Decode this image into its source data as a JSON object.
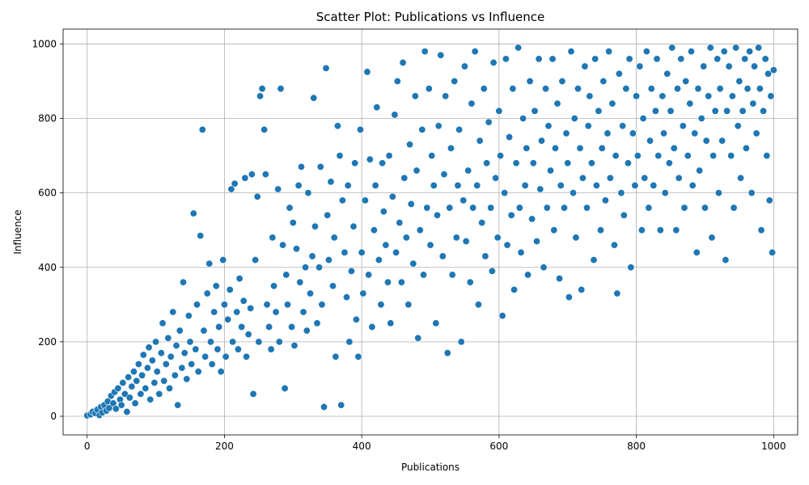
{
  "chart_data": {
    "type": "scatter",
    "title": "Scatter Plot: Publications vs Influence",
    "xlabel": "Publications",
    "ylabel": "Influence",
    "xlim": [
      -35,
      1035
    ],
    "ylim": [
      -50,
      1040
    ],
    "xticks": [
      0,
      200,
      400,
      600,
      800,
      1000
    ],
    "yticks": [
      0,
      200,
      400,
      600,
      800,
      1000
    ],
    "grid": true,
    "color": "#1f77b4",
    "points": [
      [
        0,
        2
      ],
      [
        5,
        5
      ],
      [
        8,
        12
      ],
      [
        12,
        8
      ],
      [
        15,
        18
      ],
      [
        18,
        3
      ],
      [
        20,
        25
      ],
      [
        22,
        10
      ],
      [
        25,
        30
      ],
      [
        28,
        15
      ],
      [
        30,
        40
      ],
      [
        32,
        22
      ],
      [
        35,
        55
      ],
      [
        38,
        35
      ],
      [
        40,
        65
      ],
      [
        42,
        20
      ],
      [
        45,
        75
      ],
      [
        48,
        45
      ],
      [
        50,
        30
      ],
      [
        52,
        90
      ],
      [
        55,
        60
      ],
      [
        58,
        12
      ],
      [
        60,
        105
      ],
      [
        62,
        50
      ],
      [
        65,
        80
      ],
      [
        68,
        120
      ],
      [
        70,
        35
      ],
      [
        72,
        95
      ],
      [
        75,
        140
      ],
      [
        78,
        60
      ],
      [
        80,
        110
      ],
      [
        82,
        165
      ],
      [
        85,
        75
      ],
      [
        88,
        130
      ],
      [
        90,
        185
      ],
      [
        92,
        45
      ],
      [
        95,
        150
      ],
      [
        98,
        90
      ],
      [
        100,
        200
      ],
      [
        102,
        120
      ],
      [
        105,
        60
      ],
      [
        108,
        170
      ],
      [
        110,
        250
      ],
      [
        112,
        95
      ],
      [
        115,
        140
      ],
      [
        118,
        210
      ],
      [
        120,
        75
      ],
      [
        122,
        160
      ],
      [
        125,
        280
      ],
      [
        128,
        110
      ],
      [
        130,
        190
      ],
      [
        132,
        30
      ],
      [
        135,
        230
      ],
      [
        138,
        130
      ],
      [
        140,
        360
      ],
      [
        142,
        170
      ],
      [
        145,
        100
      ],
      [
        148,
        270
      ],
      [
        150,
        200
      ],
      [
        152,
        140
      ],
      [
        155,
        545
      ],
      [
        158,
        180
      ],
      [
        160,
        300
      ],
      [
        162,
        120
      ],
      [
        165,
        485
      ],
      [
        168,
        770
      ],
      [
        170,
        230
      ],
      [
        172,
        160
      ],
      [
        175,
        330
      ],
      [
        178,
        410
      ],
      [
        180,
        200
      ],
      [
        182,
        140
      ],
      [
        185,
        280
      ],
      [
        188,
        350
      ],
      [
        190,
        180
      ],
      [
        192,
        240
      ],
      [
        195,
        120
      ],
      [
        198,
        420
      ],
      [
        200,
        300
      ],
      [
        202,
        160
      ],
      [
        205,
        260
      ],
      [
        208,
        340
      ],
      [
        210,
        610
      ],
      [
        212,
        200
      ],
      [
        215,
        625
      ],
      [
        218,
        280
      ],
      [
        220,
        180
      ],
      [
        222,
        370
      ],
      [
        225,
        240
      ],
      [
        228,
        310
      ],
      [
        230,
        640
      ],
      [
        232,
        160
      ],
      [
        235,
        220
      ],
      [
        238,
        290
      ],
      [
        240,
        650
      ],
      [
        242,
        60
      ],
      [
        245,
        420
      ],
      [
        248,
        590
      ],
      [
        250,
        200
      ],
      [
        252,
        860
      ],
      [
        255,
        880
      ],
      [
        258,
        770
      ],
      [
        260,
        650
      ],
      [
        262,
        300
      ],
      [
        265,
        240
      ],
      [
        268,
        180
      ],
      [
        270,
        480
      ],
      [
        272,
        350
      ],
      [
        275,
        280
      ],
      [
        278,
        610
      ],
      [
        280,
        200
      ],
      [
        282,
        880
      ],
      [
        285,
        460
      ],
      [
        288,
        75
      ],
      [
        290,
        380
      ],
      [
        292,
        300
      ],
      [
        295,
        560
      ],
      [
        298,
        240
      ],
      [
        300,
        520
      ],
      [
        302,
        190
      ],
      [
        305,
        450
      ],
      [
        308,
        620
      ],
      [
        310,
        360
      ],
      [
        312,
        670
      ],
      [
        315,
        280
      ],
      [
        318,
        400
      ],
      [
        320,
        230
      ],
      [
        322,
        600
      ],
      [
        325,
        330
      ],
      [
        328,
        430
      ],
      [
        330,
        855
      ],
      [
        332,
        510
      ],
      [
        335,
        250
      ],
      [
        338,
        400
      ],
      [
        340,
        670
      ],
      [
        342,
        300
      ],
      [
        345,
        25
      ],
      [
        348,
        935
      ],
      [
        350,
        540
      ],
      [
        352,
        420
      ],
      [
        355,
        630
      ],
      [
        358,
        350
      ],
      [
        360,
        480
      ],
      [
        362,
        160
      ],
      [
        365,
        780
      ],
      [
        368,
        700
      ],
      [
        370,
        30
      ],
      [
        372,
        580
      ],
      [
        375,
        440
      ],
      [
        378,
        320
      ],
      [
        380,
        620
      ],
      [
        382,
        200
      ],
      [
        385,
        390
      ],
      [
        388,
        510
      ],
      [
        390,
        680
      ],
      [
        392,
        260
      ],
      [
        395,
        160
      ],
      [
        398,
        770
      ],
      [
        400,
        440
      ],
      [
        402,
        330
      ],
      [
        405,
        580
      ],
      [
        408,
        925
      ],
      [
        410,
        380
      ],
      [
        412,
        690
      ],
      [
        415,
        240
      ],
      [
        418,
        500
      ],
      [
        420,
        620
      ],
      [
        422,
        830
      ],
      [
        425,
        420
      ],
      [
        428,
        300
      ],
      [
        430,
        680
      ],
      [
        432,
        550
      ],
      [
        435,
        460
      ],
      [
        438,
        360
      ],
      [
        440,
        700
      ],
      [
        442,
        250
      ],
      [
        445,
        590
      ],
      [
        448,
        810
      ],
      [
        450,
        440
      ],
      [
        452,
        900
      ],
      [
        455,
        520
      ],
      [
        458,
        360
      ],
      [
        460,
        950
      ],
      [
        462,
        640
      ],
      [
        465,
        480
      ],
      [
        468,
        300
      ],
      [
        470,
        730
      ],
      [
        472,
        570
      ],
      [
        475,
        410
      ],
      [
        478,
        860
      ],
      [
        480,
        660
      ],
      [
        482,
        210
      ],
      [
        485,
        500
      ],
      [
        488,
        770
      ],
      [
        490,
        380
      ],
      [
        492,
        980
      ],
      [
        495,
        560
      ],
      [
        498,
        880
      ],
      [
        500,
        460
      ],
      [
        502,
        700
      ],
      [
        505,
        620
      ],
      [
        508,
        250
      ],
      [
        510,
        540
      ],
      [
        512,
        780
      ],
      [
        515,
        970
      ],
      [
        518,
        430
      ],
      [
        520,
        650
      ],
      [
        522,
        860
      ],
      [
        525,
        170
      ],
      [
        528,
        560
      ],
      [
        530,
        720
      ],
      [
        532,
        380
      ],
      [
        535,
        900
      ],
      [
        538,
        480
      ],
      [
        540,
        620
      ],
      [
        542,
        770
      ],
      [
        545,
        200
      ],
      [
        548,
        580
      ],
      [
        550,
        940
      ],
      [
        552,
        470
      ],
      [
        555,
        660
      ],
      [
        558,
        360
      ],
      [
        560,
        840
      ],
      [
        562,
        560
      ],
      [
        565,
        980
      ],
      [
        568,
        620
      ],
      [
        570,
        300
      ],
      [
        572,
        740
      ],
      [
        575,
        520
      ],
      [
        578,
        880
      ],
      [
        580,
        430
      ],
      [
        582,
        680
      ],
      [
        585,
        790
      ],
      [
        588,
        560
      ],
      [
        590,
        390
      ],
      [
        592,
        950
      ],
      [
        595,
        640
      ],
      [
        598,
        480
      ],
      [
        600,
        820
      ],
      [
        602,
        700
      ],
      [
        605,
        270
      ],
      [
        608,
        600
      ],
      [
        610,
        960
      ],
      [
        612,
        460
      ],
      [
        615,
        750
      ],
      [
        618,
        540
      ],
      [
        620,
        880
      ],
      [
        622,
        340
      ],
      [
        625,
        680
      ],
      [
        628,
        990
      ],
      [
        630,
        560
      ],
      [
        632,
        440
      ],
      [
        635,
        800
      ],
      [
        638,
        620
      ],
      [
        640,
        720
      ],
      [
        642,
        380
      ],
      [
        645,
        900
      ],
      [
        648,
        530
      ],
      [
        650,
        680
      ],
      [
        652,
        820
      ],
      [
        655,
        470
      ],
      [
        658,
        960
      ],
      [
        660,
        610
      ],
      [
        662,
        740
      ],
      [
        665,
        400
      ],
      [
        668,
        880
      ],
      [
        670,
        560
      ],
      [
        672,
        780
      ],
      [
        675,
        660
      ],
      [
        678,
        960
      ],
      [
        680,
        500
      ],
      [
        682,
        720
      ],
      [
        685,
        840
      ],
      [
        688,
        370
      ],
      [
        690,
        620
      ],
      [
        692,
        900
      ],
      [
        695,
        560
      ],
      [
        698,
        760
      ],
      [
        700,
        680
      ],
      [
        702,
        320
      ],
      [
        705,
        980
      ],
      [
        708,
        600
      ],
      [
        710,
        800
      ],
      [
        712,
        480
      ],
      [
        715,
        880
      ],
      [
        718,
        720
      ],
      [
        720,
        340
      ],
      [
        722,
        640
      ],
      [
        725,
        940
      ],
      [
        728,
        560
      ],
      [
        730,
        780
      ],
      [
        732,
        860
      ],
      [
        735,
        680
      ],
      [
        738,
        420
      ],
      [
        740,
        960
      ],
      [
        742,
        620
      ],
      [
        745,
        820
      ],
      [
        748,
        500
      ],
      [
        750,
        720
      ],
      [
        752,
        900
      ],
      [
        755,
        580
      ],
      [
        758,
        760
      ],
      [
        760,
        980
      ],
      [
        762,
        640
      ],
      [
        765,
        840
      ],
      [
        768,
        460
      ],
      [
        770,
        700
      ],
      [
        772,
        330
      ],
      [
        775,
        920
      ],
      [
        778,
        600
      ],
      [
        780,
        780
      ],
      [
        782,
        540
      ],
      [
        785,
        880
      ],
      [
        788,
        680
      ],
      [
        790,
        960
      ],
      [
        792,
        400
      ],
      [
        795,
        760
      ],
      [
        798,
        620
      ],
      [
        800,
        860
      ],
      [
        802,
        700
      ],
      [
        805,
        940
      ],
      [
        808,
        500
      ],
      [
        810,
        800
      ],
      [
        812,
        640
      ],
      [
        815,
        980
      ],
      [
        818,
        560
      ],
      [
        820,
        740
      ],
      [
        822,
        880
      ],
      [
        825,
        620
      ],
      [
        828,
        820
      ],
      [
        830,
        960
      ],
      [
        832,
        700
      ],
      [
        835,
        500
      ],
      [
        838,
        860
      ],
      [
        840,
        760
      ],
      [
        842,
        600
      ],
      [
        845,
        920
      ],
      [
        848,
        680
      ],
      [
        850,
        820
      ],
      [
        852,
        990
      ],
      [
        855,
        720
      ],
      [
        858,
        500
      ],
      [
        860,
        880
      ],
      [
        862,
        640
      ],
      [
        865,
        960
      ],
      [
        868,
        780
      ],
      [
        870,
        560
      ],
      [
        872,
        900
      ],
      [
        875,
        700
      ],
      [
        878,
        840
      ],
      [
        880,
        980
      ],
      [
        882,
        620
      ],
      [
        885,
        760
      ],
      [
        888,
        440
      ],
      [
        890,
        880
      ],
      [
        892,
        660
      ],
      [
        895,
        800
      ],
      [
        898,
        940
      ],
      [
        900,
        560
      ],
      [
        902,
        740
      ],
      [
        905,
        860
      ],
      [
        908,
        990
      ],
      [
        910,
        480
      ],
      [
        912,
        700
      ],
      [
        915,
        820
      ],
      [
        918,
        960
      ],
      [
        920,
        600
      ],
      [
        922,
        880
      ],
      [
        925,
        740
      ],
      [
        928,
        980
      ],
      [
        930,
        420
      ],
      [
        932,
        820
      ],
      [
        935,
        940
      ],
      [
        938,
        700
      ],
      [
        940,
        860
      ],
      [
        942,
        560
      ],
      [
        945,
        990
      ],
      [
        948,
        780
      ],
      [
        950,
        900
      ],
      [
        952,
        640
      ],
      [
        955,
        820
      ],
      [
        958,
        960
      ],
      [
        960,
        720
      ],
      [
        962,
        880
      ],
      [
        965,
        980
      ],
      [
        968,
        600
      ],
      [
        970,
        840
      ],
      [
        972,
        940
      ],
      [
        975,
        760
      ],
      [
        978,
        990
      ],
      [
        980,
        880
      ],
      [
        982,
        500
      ],
      [
        985,
        820
      ],
      [
        988,
        960
      ],
      [
        990,
        700
      ],
      [
        992,
        920
      ],
      [
        994,
        580
      ],
      [
        996,
        860
      ],
      [
        998,
        440
      ],
      [
        1000,
        930
      ]
    ]
  }
}
